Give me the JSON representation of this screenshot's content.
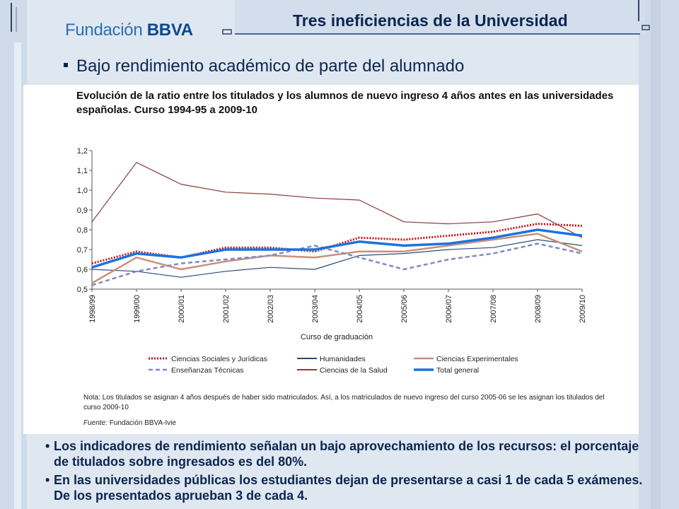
{
  "header": {
    "logo_prefix": "Fundación",
    "logo_brand": "BBVA",
    "title": "Tres ineficiencias de la Universidad"
  },
  "subtitle": "Bajo rendimiento académico de parte del alumnado",
  "note": "Nota: Los titulados se asignan 4 años después de haber sido matriculados. Así, a los matriculados de nuevo ingreso del curso 2005-06 se les asignan los titulados del curso 2009-10",
  "source_label": "Fuente:",
  "source_text": "Fundación BBVA-Ivie",
  "bullets": [
    "Los indicadores de rendimiento señalan un bajo aprovechamiento de los recursos: el porcentaje de titulados sobre ingresados es del 80%.",
    "En las universidades públicas los estudiantes dejan de presentarse a casi 1 de cada 5 exámenes. De los presentados aprueban 3 de cada 4."
  ],
  "colors": {
    "sociales": "#cc1111",
    "humanidades": "#2a4a7a",
    "experimentales": "#c8907a",
    "tecnicas": "#7f88c8",
    "salud": "#8a3a3a",
    "total": "#1a73e0"
  },
  "chart_data": {
    "type": "line",
    "title": "Evolución de la ratio entre los titulados y los alumnos de nuevo ingreso 4 años antes en las universidades españolas. Curso 1994-95 a 2009-10",
    "xlabel": "Curso de graduación",
    "ylabel": "",
    "x": [
      "1998/99",
      "1999/00",
      "2000/01",
      "2001/02",
      "2002/03",
      "2003/04",
      "2004/05",
      "2005/06",
      "2006/07",
      "2007/08",
      "2008/09",
      "2009/10"
    ],
    "yticks": [
      "0,5",
      "0,6",
      "0,7",
      "0,8",
      "0,9",
      "1,0",
      "1,1",
      "1,2"
    ],
    "ylim": [
      0.5,
      1.2
    ],
    "grid": false,
    "legend_position": "bottom",
    "series": [
      {
        "name": "Ciencias Sociales y Jurídicas",
        "key": "sociales",
        "style": "dotted",
        "values": [
          0.63,
          0.69,
          0.66,
          0.71,
          0.71,
          0.69,
          0.76,
          0.75,
          0.77,
          0.79,
          0.83,
          0.82
        ]
      },
      {
        "name": "Humanidades",
        "key": "humanidades",
        "style": "thin",
        "values": [
          0.6,
          0.59,
          0.56,
          0.59,
          0.61,
          0.6,
          0.67,
          0.68,
          0.7,
          0.71,
          0.75,
          0.72
        ]
      },
      {
        "name": "Ciencias Experimentales",
        "key": "experimentales",
        "style": "thick",
        "values": [
          0.53,
          0.66,
          0.6,
          0.64,
          0.67,
          0.66,
          0.69,
          0.69,
          0.72,
          0.75,
          0.78,
          0.69
        ]
      },
      {
        "name": "Enseñanzas Técnicas",
        "key": "tecnicas",
        "style": "dashed",
        "values": [
          0.52,
          0.59,
          0.63,
          0.65,
          0.67,
          0.72,
          0.66,
          0.6,
          0.65,
          0.68,
          0.73,
          0.68
        ]
      },
      {
        "name": "Ciencias de la Salud",
        "key": "salud",
        "style": "medium",
        "values": [
          0.84,
          1.14,
          1.03,
          0.99,
          0.98,
          0.96,
          0.95,
          0.84,
          0.83,
          0.84,
          0.88,
          0.76
        ]
      },
      {
        "name": "Total general",
        "key": "total",
        "style": "bold",
        "values": [
          0.61,
          0.68,
          0.66,
          0.7,
          0.7,
          0.7,
          0.74,
          0.72,
          0.73,
          0.76,
          0.8,
          0.77
        ]
      }
    ]
  }
}
